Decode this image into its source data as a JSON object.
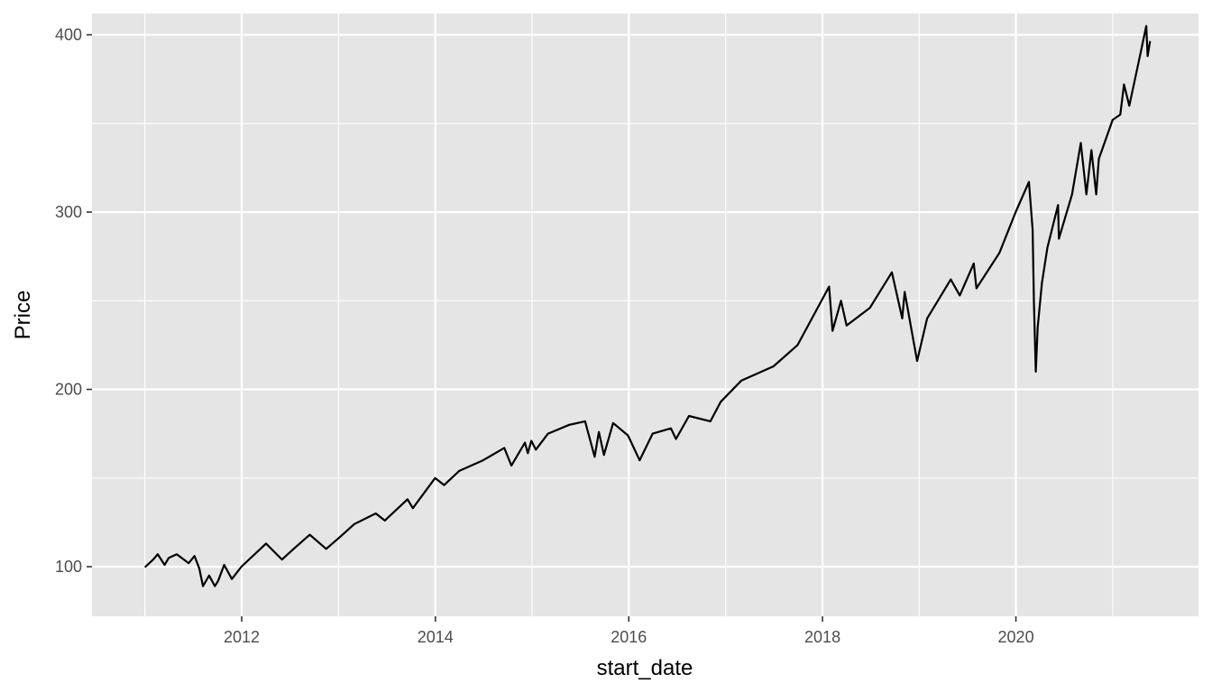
{
  "chart_data": {
    "type": "line",
    "title": "",
    "xlabel": "start_date",
    "ylabel": "Price",
    "x_scale": "date",
    "xlim": [
      "2010-06-15",
      "2021-11-20"
    ],
    "ylim": [
      72,
      412
    ],
    "x_ticks": [
      {
        "value": "2012-01-01",
        "label": "2012"
      },
      {
        "value": "2014-01-01",
        "label": "2014"
      },
      {
        "value": "2016-01-01",
        "label": "2016"
      },
      {
        "value": "2018-01-01",
        "label": "2018"
      },
      {
        "value": "2020-01-01",
        "label": "2020"
      }
    ],
    "y_ticks": [
      {
        "value": 100,
        "label": "100"
      },
      {
        "value": 200,
        "label": "200"
      },
      {
        "value": 300,
        "label": "300"
      },
      {
        "value": 400,
        "label": "400"
      }
    ],
    "grid": true,
    "legend": "none",
    "colors": {
      "panel": "#e5e5e5",
      "grid": "#ffffff",
      "line": "#000000",
      "tick_text": "#4d4d4d",
      "axis_title": "#000000"
    },
    "series": [
      {
        "x": [
          "2011-01-03",
          "2011-02-01",
          "2011-02-18",
          "2011-03-16",
          "2011-04-01",
          "2011-05-01",
          "2011-06-15",
          "2011-07-07",
          "2011-07-25",
          "2011-08-08",
          "2011-08-31",
          "2011-09-22",
          "2011-10-04",
          "2011-10-27",
          "2011-11-25",
          "2011-12-31",
          "2012-04-02",
          "2012-06-01",
          "2012-07-15",
          "2012-09-14",
          "2012-11-15",
          "2012-12-31",
          "2013-03-01",
          "2013-05-21",
          "2013-06-24",
          "2013-09-18",
          "2013-10-08",
          "2013-12-31",
          "2014-02-03",
          "2014-04-01",
          "2014-06-30",
          "2014-09-18",
          "2014-10-15",
          "2014-12-05",
          "2014-12-16",
          "2014-12-29",
          "2015-01-15",
          "2015-03-02",
          "2015-05-21",
          "2015-07-20",
          "2015-08-25",
          "2015-09-10",
          "2015-09-29",
          "2015-11-03",
          "2015-12-29",
          "2016-02-11",
          "2016-03-31",
          "2016-06-08",
          "2016-06-27",
          "2016-08-15",
          "2016-11-04",
          "2016-12-13",
          "2017-03-01",
          "2017-06-30",
          "2017-09-29",
          "2018-01-26",
          "2018-02-08",
          "2018-03-12",
          "2018-04-02",
          "2018-06-29",
          "2018-09-20",
          "2018-10-29",
          "2018-11-07",
          "2018-12-24",
          "2019-01-31",
          "2019-04-30",
          "2019-06-03",
          "2019-07-26",
          "2019-08-05",
          "2019-10-31",
          "2019-12-31",
          "2020-02-19",
          "2020-03-04",
          "2020-03-09",
          "2020-03-12",
          "2020-03-16",
          "2020-03-23",
          "2020-04-08",
          "2020-04-29",
          "2020-06-08",
          "2020-06-11",
          "2020-07-31",
          "2020-09-02",
          "2020-09-23",
          "2020-10-12",
          "2020-10-30",
          "2020-11-09",
          "2020-12-31",
          "2021-01-29",
          "2021-02-12",
          "2021-03-04",
          "2021-04-16",
          "2021-05-07",
          "2021-05-12",
          "2021-05-21"
        ],
        "y": [
          100,
          104,
          107,
          101,
          105,
          107,
          102,
          106,
          99,
          89,
          95,
          89,
          92,
          101,
          93,
          100,
          113,
          104,
          110,
          118,
          110,
          116,
          124,
          130,
          126,
          138,
          133,
          150,
          146,
          154,
          160,
          167,
          157,
          170,
          164,
          171,
          166,
          175,
          180,
          182,
          162,
          176,
          163,
          181,
          174,
          160,
          175,
          178,
          172,
          185,
          182,
          193,
          205,
          213,
          225,
          258,
          233,
          250,
          236,
          246,
          266,
          240,
          255,
          216,
          240,
          262,
          253,
          271,
          257,
          277,
          300,
          317,
          290,
          250,
          232,
          210,
          235,
          260,
          280,
          304,
          285,
          310,
          339,
          310,
          335,
          310,
          330,
          352,
          355,
          372,
          360,
          390,
          405,
          388,
          396
        ]
      }
    ]
  }
}
